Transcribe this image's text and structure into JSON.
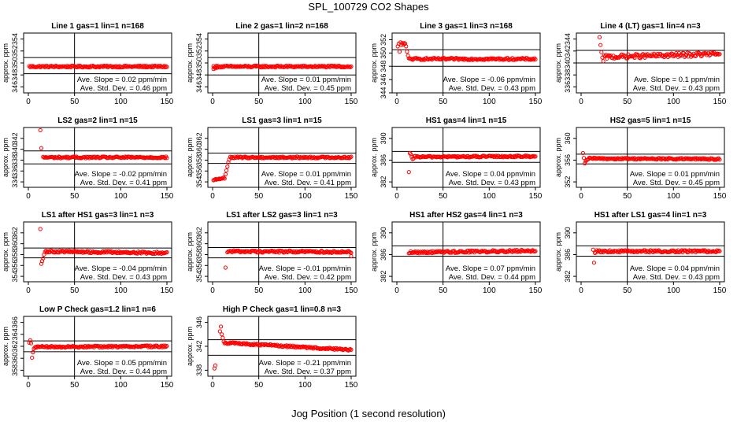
{
  "title": "SPL_100729  CO2 Shapes",
  "x_axis_label": "Jog Position (1 second resolution)",
  "y_axis_label": "approx. ppm",
  "slope_prefix": "Ave. Slope = ",
  "slope_unit": "ppm/min",
  "std_prefix": "Ave. Std. Dev. = ",
  "std_unit": "ppm",
  "point_color": "#ff0000",
  "chart_data": [
    {
      "type": "scatter",
      "title": "Line 1 gas=1 lin=1 n=168",
      "xlim": [
        0,
        150
      ],
      "xticks": [
        0,
        50,
        100,
        150
      ],
      "ylim": [
        345,
        355
      ],
      "yticks": [
        346,
        348,
        350,
        352,
        354
      ],
      "hlines": [
        350.9,
        348.2
      ],
      "vline": 50,
      "slope": "0.02",
      "std": "0.46",
      "points": {
        "x_start": 1,
        "x_end": 150,
        "base": 349.4,
        "end": 349.4,
        "noise": 0.15,
        "transient": []
      }
    },
    {
      "type": "scatter",
      "title": "Line 2 gas=1 lin=2 n=168",
      "xlim": [
        0,
        150
      ],
      "xticks": [
        0,
        50,
        100,
        150
      ],
      "ylim": [
        345,
        355
      ],
      "yticks": [
        346,
        348,
        350,
        352,
        354
      ],
      "hlines": [
        350.9,
        348.0
      ],
      "vline": 50,
      "slope": "0.01",
      "std": "0.45",
      "points": {
        "x_start": 1,
        "x_end": 150,
        "base": 349.4,
        "end": 349.4,
        "noise": 0.15,
        "transient": [
          [
            1,
            349.0
          ],
          [
            3,
            349.1
          ],
          [
            5,
            349.2
          ]
        ]
      }
    },
    {
      "type": "scatter",
      "title": "Line 3 gas=1 lin=3 n=168",
      "xlim": [
        0,
        150
      ],
      "xticks": [
        0,
        50,
        100,
        150
      ],
      "ylim": [
        344,
        353
      ],
      "yticks": [
        344,
        346,
        348,
        350,
        352
      ],
      "hlines": [
        350.5,
        348.0
      ],
      "vline": 50,
      "slope": "-0.06",
      "std": "0.43",
      "points": {
        "x_start": 13,
        "x_end": 150,
        "base": 349.1,
        "end": 349.1,
        "noise": 0.15,
        "transient": [
          [
            1,
            351.0
          ],
          [
            2,
            351.4
          ],
          [
            3,
            350.2
          ],
          [
            4,
            351.6
          ],
          [
            5,
            351.2
          ],
          [
            6,
            351.5
          ],
          [
            7,
            351.3
          ],
          [
            8,
            351.5
          ],
          [
            9,
            351.4
          ],
          [
            10,
            351.0
          ],
          [
            11,
            350.2
          ],
          [
            12,
            349.6
          ]
        ]
      }
    },
    {
      "type": "scatter",
      "title": "Line 4 (LT) gas=1 lin=4 n=3",
      "xlim": [
        0,
        150
      ],
      "xticks": [
        0,
        50,
        100,
        150
      ],
      "ylim": [
        335,
        345
      ],
      "yticks": [
        336,
        338,
        340,
        342,
        344
      ],
      "hlines": [
        342.1,
        340.0
      ],
      "vline": 50,
      "slope": "0.1",
      "std": "0.43",
      "points": {
        "x_start": 25,
        "x_end": 150,
        "base": 341.0,
        "end": 341.5,
        "noise": 0.35,
        "transient": [
          [
            20,
            344.3
          ],
          [
            21,
            343.0
          ],
          [
            22,
            341.8
          ],
          [
            23,
            340.9
          ],
          [
            24,
            340.3
          ]
        ]
      }
    },
    {
      "type": "scatter",
      "title": "LS2 gas=2 lin=1 n=15",
      "xlim": [
        0,
        150
      ],
      "xticks": [
        0,
        50,
        100,
        150
      ],
      "ylim": [
        333,
        344
      ],
      "yticks": [
        334,
        336,
        338,
        340,
        342
      ],
      "hlines": [
        339.7,
        337.3
      ],
      "vline": 50,
      "slope": "-0.02",
      "std": "0.41",
      "points": {
        "x_start": 16,
        "x_end": 150,
        "base": 338.5,
        "end": 338.5,
        "noise": 0.15,
        "transient": [
          [
            13,
            343.5
          ],
          [
            14,
            340.2
          ]
        ]
      }
    },
    {
      "type": "scatter",
      "title": "LS1 gas=3 lin=1 n=15",
      "xlim": [
        0,
        150
      ],
      "xticks": [
        0,
        50,
        100,
        150
      ],
      "ylim": [
        353,
        364
      ],
      "yticks": [
        354,
        356,
        358,
        360,
        362
      ],
      "hlines": [
        359.3,
        357.4
      ],
      "vline": 50,
      "slope": "0.01",
      "std": "0.41",
      "points": {
        "x_start": 19,
        "x_end": 150,
        "base": 358.5,
        "end": 358.5,
        "noise": 0.15,
        "transient": [
          [
            1,
            354.3
          ],
          [
            2,
            354.4
          ],
          [
            3,
            354.5
          ],
          [
            4,
            354.4
          ],
          [
            5,
            354.5
          ],
          [
            6,
            354.5
          ],
          [
            7,
            354.6
          ],
          [
            8,
            354.5
          ],
          [
            9,
            354.6
          ],
          [
            10,
            354.6
          ],
          [
            11,
            354.7
          ],
          [
            12,
            354.8
          ],
          [
            13,
            354.6
          ],
          [
            14,
            355.4
          ],
          [
            15,
            356.1
          ],
          [
            16,
            356.8
          ],
          [
            17,
            357.6
          ],
          [
            18,
            358.1
          ]
        ]
      }
    },
    {
      "type": "scatter",
      "title": "HS1 gas=4 lin=1 n=15",
      "xlim": [
        0,
        150
      ],
      "xticks": [
        0,
        50,
        100,
        150
      ],
      "ylim": [
        381,
        392
      ],
      "yticks": [
        382,
        386,
        390
      ],
      "hlines": [
        387.6,
        385.6
      ],
      "vline": 50,
      "slope": "0.04",
      "std": "0.43",
      "points": {
        "x_start": 19,
        "x_end": 150,
        "base": 386.6,
        "end": 386.7,
        "noise": 0.15,
        "transient": [
          [
            13,
            383.8
          ],
          [
            14,
            387.3
          ],
          [
            15,
            387.1
          ],
          [
            16,
            386.6
          ],
          [
            17,
            386.2
          ],
          [
            18,
            386.3
          ]
        ]
      }
    },
    {
      "type": "scatter",
      "title": "HS2 gas=5 lin=1 n=15",
      "xlim": [
        0,
        150
      ],
      "xticks": [
        0,
        50,
        100,
        150
      ],
      "ylim": [
        351,
        362
      ],
      "yticks": [
        352,
        356,
        360
      ],
      "hlines": [
        357.1,
        355.3
      ],
      "vline": 50,
      "slope": "0.01",
      "std": "0.45",
      "points": {
        "x_start": 9,
        "x_end": 150,
        "base": 356.3,
        "end": 356.2,
        "noise": 0.15,
        "transient": [
          [
            2,
            357.3
          ],
          [
            3,
            356.4
          ],
          [
            4,
            355.4
          ],
          [
            5,
            355.8
          ],
          [
            6,
            356.0
          ],
          [
            7,
            356.1
          ],
          [
            8,
            356.2
          ]
        ]
      }
    },
    {
      "type": "scatter",
      "title": "LS1 after HS1 gas=3 lin=1 n=3",
      "xlim": [
        0,
        150
      ],
      "xticks": [
        0,
        50,
        100,
        150
      ],
      "ylim": [
        353,
        364
      ],
      "yticks": [
        354,
        356,
        358,
        360,
        362
      ],
      "hlines": [
        359.2,
        357.4
      ],
      "vline": 50,
      "slope": "-0.04",
      "std": "0.43",
      "points": {
        "x_start": 20,
        "x_end": 150,
        "base": 358.6,
        "end": 358.3,
        "noise": 0.2,
        "transient": [
          [
            13,
            362.7
          ],
          [
            14,
            356.3
          ],
          [
            15,
            356.8
          ],
          [
            16,
            357.3
          ],
          [
            17,
            358.0
          ],
          [
            18,
            358.5
          ],
          [
            19,
            358.7
          ]
        ]
      }
    },
    {
      "type": "scatter",
      "title": "LS1 after LS2 gas=3 lin=1 n=3",
      "xlim": [
        0,
        150
      ],
      "xticks": [
        0,
        50,
        100,
        150
      ],
      "ylim": [
        353,
        364
      ],
      "yticks": [
        354,
        356,
        358,
        360,
        362
      ],
      "hlines": [
        359.3,
        357.4
      ],
      "vline": 50,
      "slope": "-0.01",
      "std": "0.42",
      "points": {
        "x_start": 16,
        "x_end": 150,
        "base": 358.6,
        "end": 358.5,
        "noise": 0.2,
        "transient": [
          [
            14,
            355.6
          ],
          [
            150,
            357.7
          ]
        ]
      }
    },
    {
      "type": "scatter",
      "title": "HS1 after HS2 gas=4 lin=1 n=3",
      "xlim": [
        0,
        150
      ],
      "xticks": [
        0,
        50,
        100,
        150
      ],
      "ylim": [
        381,
        392
      ],
      "yticks": [
        382,
        386,
        390
      ],
      "hlines": [
        387.6,
        385.7
      ],
      "vline": 50,
      "slope": "0.07",
      "std": "0.44",
      "points": {
        "x_start": 13,
        "x_end": 150,
        "base": 386.4,
        "end": 386.7,
        "noise": 0.2,
        "transient": []
      }
    },
    {
      "type": "scatter",
      "title": "HS1 after LS1 gas=4 lin=1 n=3",
      "xlim": [
        0,
        150
      ],
      "xticks": [
        0,
        50,
        100,
        150
      ],
      "ylim": [
        381,
        392
      ],
      "yticks": [
        382,
        386,
        390
      ],
      "hlines": [
        387.6,
        385.7
      ],
      "vline": 50,
      "slope": "0.04",
      "std": "0.43",
      "points": {
        "x_start": 16,
        "x_end": 150,
        "base": 386.6,
        "end": 386.6,
        "noise": 0.2,
        "transient": [
          [
            13,
            386.9
          ],
          [
            14,
            384.5
          ],
          [
            15,
            386.3
          ]
        ]
      }
    },
    {
      "type": "scatter",
      "title": "Low P Check gas=1.2 lin=1 n=6",
      "xlim": [
        0,
        150
      ],
      "xticks": [
        0,
        50,
        100,
        150
      ],
      "ylim": [
        357,
        367
      ],
      "yticks": [
        358,
        360,
        362,
        364,
        366
      ],
      "hlines": [
        362.9,
        361.1
      ],
      "vline": 50,
      "slope": "0.05",
      "std": "0.44",
      "points": {
        "x_start": 9,
        "x_end": 150,
        "base": 361.9,
        "end": 362.0,
        "noise": 0.15,
        "transient": [
          [
            1,
            362.6
          ],
          [
            2,
            363.0
          ],
          [
            3,
            362.5
          ],
          [
            4,
            360.1
          ],
          [
            5,
            361.0
          ],
          [
            6,
            361.6
          ],
          [
            7,
            361.8
          ],
          [
            8,
            361.9
          ]
        ]
      }
    },
    {
      "type": "scatter",
      "title": "High P Check gas=1 lin=0.8 n=3",
      "xlim": [
        0,
        150
      ],
      "xticks": [
        0,
        50,
        100,
        150
      ],
      "ylim": [
        337,
        347
      ],
      "yticks": [
        338,
        342,
        346
      ],
      "hlines": [
        343.1,
        340.5
      ],
      "vline": 50,
      "slope": "-0.21",
      "std": "0.37",
      "points": {
        "x_start": 13,
        "x_end": 150,
        "base": 342.6,
        "end": 341.4,
        "noise": 0.15,
        "transient": [
          [
            2,
            338.3
          ],
          [
            3,
            338.8
          ],
          [
            8,
            344.5
          ],
          [
            9,
            345.3
          ],
          [
            10,
            344.0
          ],
          [
            11,
            343.4
          ],
          [
            12,
            342.8
          ]
        ]
      }
    }
  ]
}
